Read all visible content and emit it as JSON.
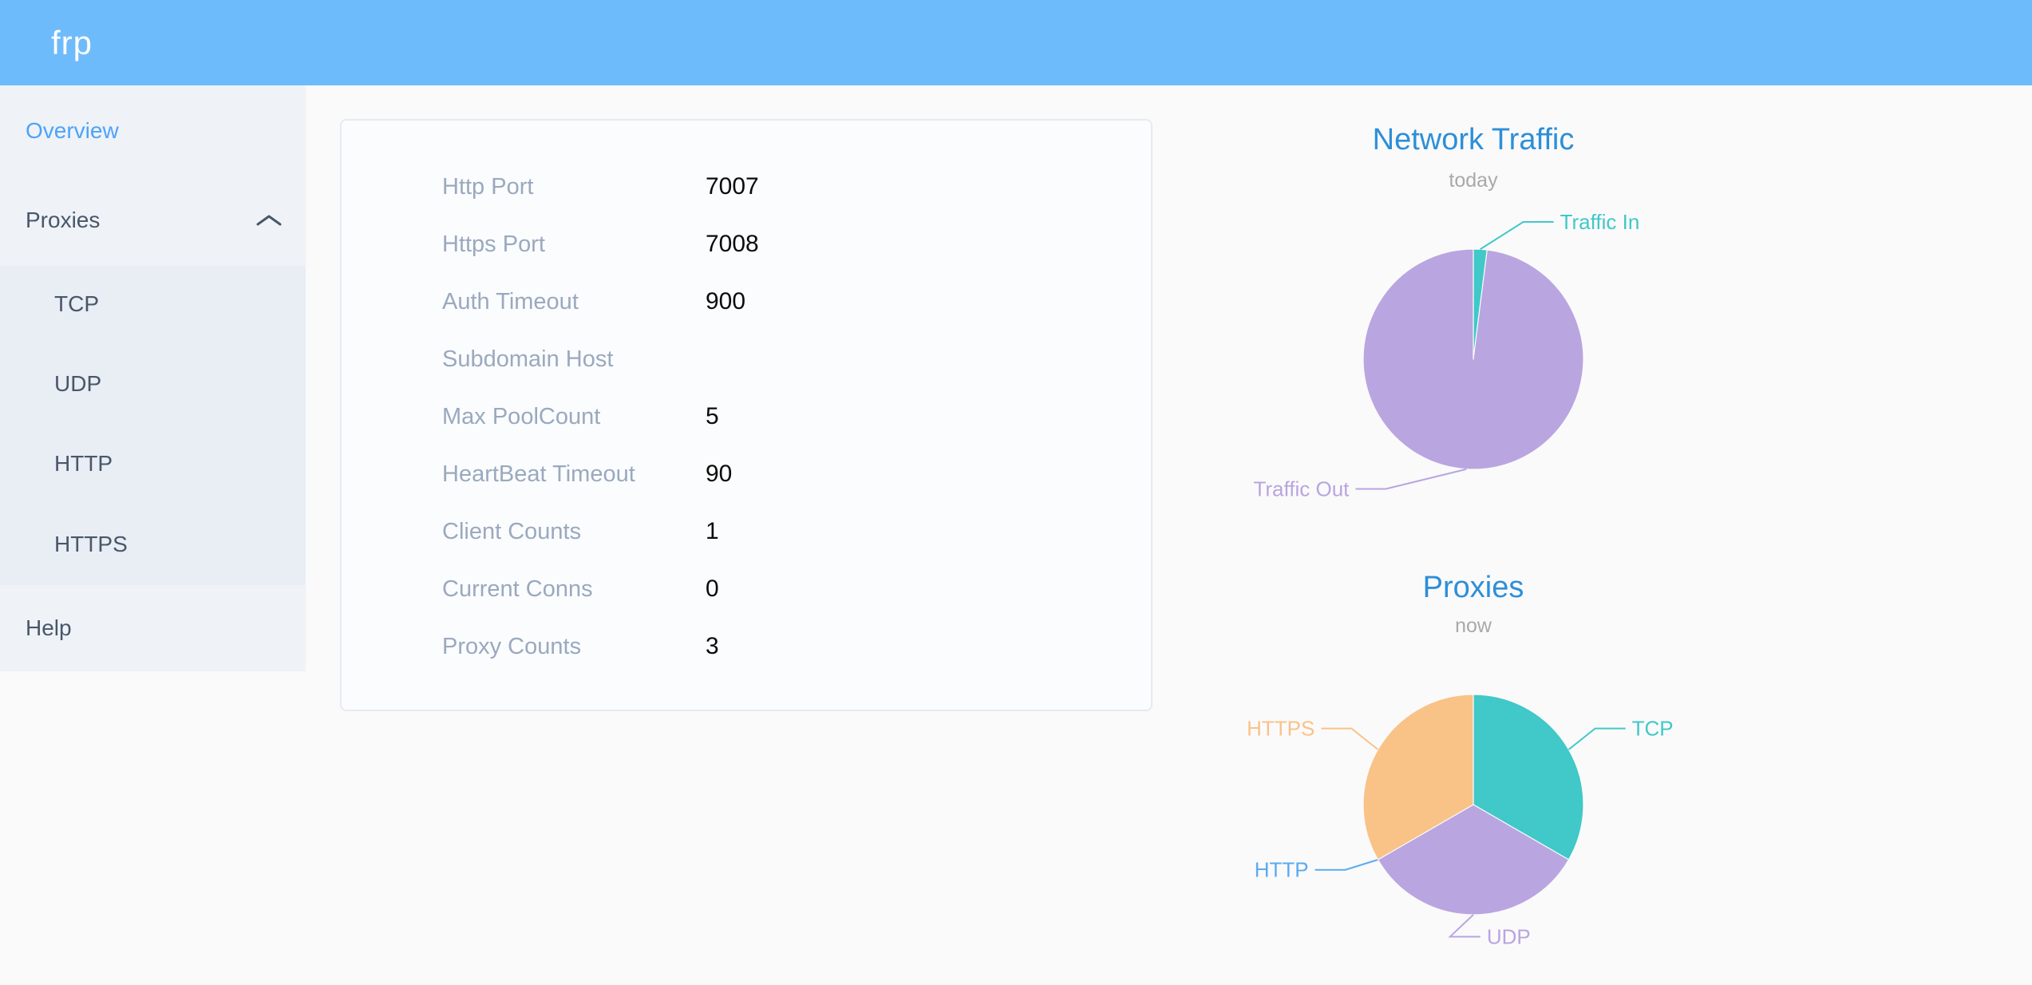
{
  "header": {
    "logo": "frp"
  },
  "colors": {
    "header_bg": "#6ebbfc",
    "sidebar_bg": "#eff2f7",
    "submenu_bg": "#e9edf4",
    "menu_text": "#48576a",
    "active_menu_item": "#4da3f8",
    "chart_title": "#2d8fd8",
    "chart_subtitle": "#a9a9a9",
    "config_label": "#9aa9bf",
    "teal": "#41c8c8",
    "purple": "#b9a5e0",
    "orange": "#f9c287",
    "blue": "#5aabef"
  },
  "sidebar": {
    "items": [
      {
        "label": "Overview",
        "active": true
      },
      {
        "label": "Proxies",
        "expanded": true,
        "children": [
          "TCP",
          "UDP",
          "HTTP",
          "HTTPS"
        ]
      },
      {
        "label": "Help"
      }
    ]
  },
  "overview": {
    "rows": [
      {
        "label": "Http Port",
        "value": "7007"
      },
      {
        "label": "Https Port",
        "value": "7008"
      },
      {
        "label": "Auth Timeout",
        "value": "900"
      },
      {
        "label": "Subdomain Host",
        "value": ""
      },
      {
        "label": "Max PoolCount",
        "value": "5"
      },
      {
        "label": "HeartBeat Timeout",
        "value": "90"
      },
      {
        "label": "Client Counts",
        "value": "1"
      },
      {
        "label": "Current Conns",
        "value": "0"
      },
      {
        "label": "Proxy Counts",
        "value": "3"
      }
    ]
  },
  "chart_data": [
    {
      "type": "pie",
      "title": "Network Traffic",
      "subtitle": "today",
      "label_position": "outside",
      "legend": "none",
      "center": [
        420,
        330
      ],
      "radius": 138,
      "slices": [
        {
          "name": "Traffic In",
          "value": 2,
          "color": "#41c8c8",
          "label_angle": 20,
          "label_extend": 45,
          "label_side": "right"
        },
        {
          "name": "Traffic Out",
          "value": 98,
          "color": "#b9a5e0",
          "label_angle": 214,
          "label_extend": 58,
          "label_side": "left"
        }
      ]
    },
    {
      "type": "pie",
      "title": "Proxies",
      "subtitle": "now",
      "label_position": "outside",
      "legend": "none",
      "center": [
        420,
        318
      ],
      "radius": 138,
      "slices": [
        {
          "name": "TCP",
          "value": 1,
          "color": "#41c8c8",
          "label_angle": 58,
          "label_extend": 42,
          "label_side": "right"
        },
        {
          "name": "UDP",
          "value": 1,
          "color": "#b9a5e0",
          "label_angle": 190,
          "label_extend": 30,
          "label_side": "right"
        },
        {
          "name": "HTTP",
          "value": 0,
          "color": "#5aabef",
          "label_angle": 243,
          "label_extend": 42,
          "label_side": "left"
        },
        {
          "name": "HTTPS",
          "value": 1,
          "color": "#f9c287",
          "label_angle": 302,
          "label_extend": 42,
          "label_side": "left"
        }
      ]
    }
  ]
}
